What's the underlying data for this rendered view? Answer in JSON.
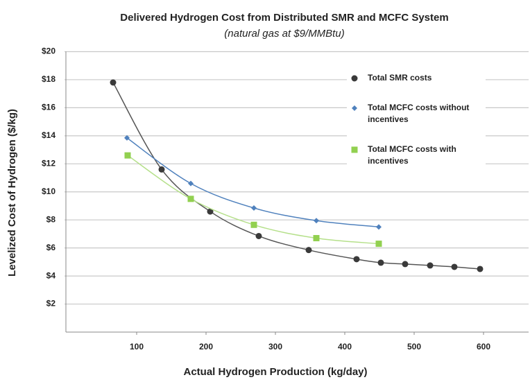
{
  "chart_data": {
    "type": "scatter",
    "title": "Delivered Hydrogen Cost from Distributed SMR and MCFC System",
    "subtitle": "(natural gas at $9/MMBtu)",
    "x_label": "Actual Hydrogen Production (kg/day)",
    "y_label": "Levelized Cost of Hydrogen ($/kg)",
    "xlim": [
      0,
      665
    ],
    "ylim": [
      0,
      20
    ],
    "xticks": [
      100,
      200,
      300,
      400,
      500,
      600
    ],
    "yticks": [
      {
        "value": 2,
        "label": "$2"
      },
      {
        "value": 4,
        "label": "$4"
      },
      {
        "value": 6,
        "label": "$6"
      },
      {
        "value": 8,
        "label": "$8"
      },
      {
        "value": 10,
        "label": "$10"
      },
      {
        "value": 12,
        "label": "$12"
      },
      {
        "value": 14,
        "label": "$14"
      },
      {
        "value": 16,
        "label": "$16"
      },
      {
        "value": 18,
        "label": "$18"
      },
      {
        "value": 20,
        "label": "$20"
      }
    ],
    "grid": true,
    "legend": "upper right",
    "series": [
      {
        "name": "Total SMR costs",
        "color": "#3a3a3a",
        "line_color": "#555555",
        "marker": "circle",
        "x": [
          66,
          136,
          206,
          276,
          348,
          417,
          452,
          487,
          523,
          558,
          595
        ],
        "values": [
          17.8,
          11.6,
          8.6,
          6.85,
          5.85,
          5.2,
          4.95,
          4.85,
          4.75,
          4.65,
          4.5
        ]
      },
      {
        "name": "Total MCFC costs without incentives",
        "color": "#4f81bd",
        "line_color": "#4f81bd",
        "marker": "diamond",
        "x": [
          86,
          178,
          269,
          359,
          449
        ],
        "values": [
          13.85,
          10.6,
          8.85,
          7.95,
          7.5
        ]
      },
      {
        "name": "Total MCFC costs with incentives",
        "color": "#92d050",
        "line_color": "#b5e08a",
        "marker": "square",
        "x": [
          87,
          178,
          269,
          359,
          449
        ],
        "values": [
          12.6,
          9.5,
          7.65,
          6.7,
          6.3
        ]
      }
    ]
  }
}
